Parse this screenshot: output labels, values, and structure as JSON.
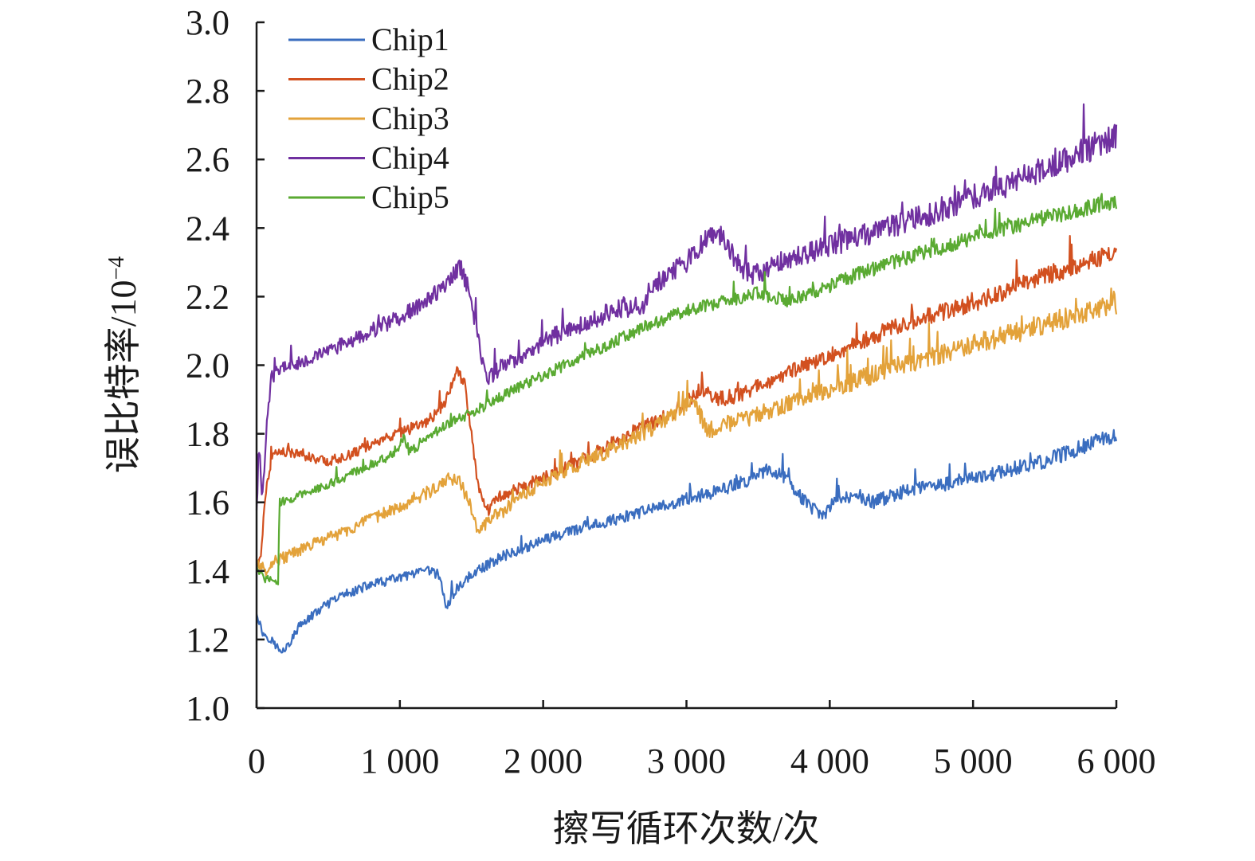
{
  "chart_data": {
    "type": "line",
    "title": "",
    "xlabel": "擦写循环次数/次",
    "ylabel": "误比特率/10",
    "ylabel_exponent": "−4",
    "xlim": [
      0,
      6000
    ],
    "ylim": [
      1.0,
      3.0
    ],
    "xticks": [
      0,
      1000,
      2000,
      3000,
      4000,
      5000,
      6000
    ],
    "xtick_labels": [
      "0",
      "1 000",
      "2 000",
      "3 000",
      "4 000",
      "5 000",
      "6 000"
    ],
    "yticks": [
      1.0,
      1.2,
      1.4,
      1.6,
      1.8,
      2.0,
      2.2,
      2.4,
      2.6,
      2.8,
      3.0
    ],
    "ytick_labels": [
      "1.0",
      "1.2",
      "1.4",
      "1.6",
      "1.8",
      "2.0",
      "2.2",
      "2.4",
      "2.6",
      "2.8",
      "3.0"
    ],
    "grid": false,
    "legend_position": "top-left",
    "series": [
      {
        "name": "Chip1",
        "color": "#3a6dbf",
        "noise": 0.012,
        "points": [
          [
            0,
            1.28
          ],
          [
            40,
            1.22
          ],
          [
            100,
            1.2
          ],
          [
            160,
            1.17
          ],
          [
            220,
            1.18
          ],
          [
            300,
            1.24
          ],
          [
            450,
            1.29
          ],
          [
            600,
            1.33
          ],
          [
            800,
            1.36
          ],
          [
            1000,
            1.38
          ],
          [
            1200,
            1.4
          ],
          [
            1270,
            1.39
          ],
          [
            1330,
            1.29
          ],
          [
            1380,
            1.34
          ],
          [
            1500,
            1.39
          ],
          [
            1700,
            1.44
          ],
          [
            2000,
            1.49
          ],
          [
            2300,
            1.53
          ],
          [
            2600,
            1.56
          ],
          [
            3000,
            1.61
          ],
          [
            3200,
            1.63
          ],
          [
            3400,
            1.66
          ],
          [
            3550,
            1.69
          ],
          [
            3700,
            1.67
          ],
          [
            3850,
            1.59
          ],
          [
            3950,
            1.56
          ],
          [
            4050,
            1.61
          ],
          [
            4200,
            1.62
          ],
          [
            4300,
            1.6
          ],
          [
            4500,
            1.63
          ],
          [
            5000,
            1.67
          ],
          [
            5500,
            1.72
          ],
          [
            6000,
            1.8
          ]
        ]
      },
      {
        "name": "Chip2",
        "color": "#d2501f",
        "noise": 0.014,
        "points": [
          [
            0,
            1.4
          ],
          [
            30,
            1.45
          ],
          [
            60,
            1.62
          ],
          [
            100,
            1.72
          ],
          [
            150,
            1.75
          ],
          [
            300,
            1.74
          ],
          [
            500,
            1.72
          ],
          [
            600,
            1.73
          ],
          [
            800,
            1.77
          ],
          [
            1000,
            1.8
          ],
          [
            1200,
            1.84
          ],
          [
            1300,
            1.88
          ],
          [
            1400,
            1.98
          ],
          [
            1450,
            1.95
          ],
          [
            1500,
            1.8
          ],
          [
            1550,
            1.64
          ],
          [
            1620,
            1.58
          ],
          [
            1700,
            1.62
          ],
          [
            2000,
            1.67
          ],
          [
            2300,
            1.73
          ],
          [
            2600,
            1.8
          ],
          [
            2900,
            1.86
          ],
          [
            3100,
            1.93
          ],
          [
            3200,
            1.9
          ],
          [
            3350,
            1.91
          ],
          [
            3600,
            1.96
          ],
          [
            4000,
            2.03
          ],
          [
            4500,
            2.12
          ],
          [
            5000,
            2.18
          ],
          [
            5500,
            2.26
          ],
          [
            6000,
            2.33
          ]
        ]
      },
      {
        "name": "Chip3",
        "color": "#e3a23a",
        "noise": 0.016,
        "points": [
          [
            0,
            1.43
          ],
          [
            60,
            1.4
          ],
          [
            120,
            1.43
          ],
          [
            200,
            1.44
          ],
          [
            400,
            1.48
          ],
          [
            700,
            1.53
          ],
          [
            1000,
            1.59
          ],
          [
            1200,
            1.63
          ],
          [
            1350,
            1.67
          ],
          [
            1420,
            1.66
          ],
          [
            1500,
            1.58
          ],
          [
            1540,
            1.51
          ],
          [
            1600,
            1.54
          ],
          [
            1800,
            1.6
          ],
          [
            2000,
            1.66
          ],
          [
            2300,
            1.72
          ],
          [
            2600,
            1.78
          ],
          [
            2900,
            1.85
          ],
          [
            3050,
            1.9
          ],
          [
            3100,
            1.85
          ],
          [
            3150,
            1.81
          ],
          [
            3300,
            1.83
          ],
          [
            3600,
            1.87
          ],
          [
            4000,
            1.93
          ],
          [
            4500,
            2.0
          ],
          [
            5000,
            2.06
          ],
          [
            5500,
            2.12
          ],
          [
            6000,
            2.18
          ]
        ]
      },
      {
        "name": "Chip4",
        "color": "#7030a0",
        "noise": 0.02,
        "points": [
          [
            0,
            1.58
          ],
          [
            20,
            1.76
          ],
          [
            40,
            1.6
          ],
          [
            70,
            1.82
          ],
          [
            100,
            1.96
          ],
          [
            150,
            1.99
          ],
          [
            300,
            2.01
          ],
          [
            500,
            2.04
          ],
          [
            800,
            2.1
          ],
          [
            1000,
            2.14
          ],
          [
            1200,
            2.19
          ],
          [
            1350,
            2.25
          ],
          [
            1420,
            2.29
          ],
          [
            1480,
            2.22
          ],
          [
            1550,
            2.08
          ],
          [
            1600,
            1.96
          ],
          [
            1700,
            1.99
          ],
          [
            2000,
            2.07
          ],
          [
            2200,
            2.11
          ],
          [
            2500,
            2.16
          ],
          [
            2700,
            2.18
          ],
          [
            2750,
            2.23
          ],
          [
            3000,
            2.3
          ],
          [
            3150,
            2.37
          ],
          [
            3250,
            2.38
          ],
          [
            3350,
            2.3
          ],
          [
            3450,
            2.26
          ],
          [
            3700,
            2.31
          ],
          [
            4000,
            2.35
          ],
          [
            4500,
            2.41
          ],
          [
            5000,
            2.49
          ],
          [
            5500,
            2.57
          ],
          [
            6000,
            2.67
          ]
        ]
      },
      {
        "name": "Chip5",
        "color": "#5aaa32",
        "noise": 0.012,
        "points": [
          [
            0,
            1.42
          ],
          [
            40,
            1.38
          ],
          [
            110,
            1.37
          ],
          [
            150,
            1.37
          ],
          [
            160,
            1.6
          ],
          [
            300,
            1.62
          ],
          [
            600,
            1.67
          ],
          [
            900,
            1.73
          ],
          [
            1000,
            1.76
          ],
          [
            1030,
            1.8
          ],
          [
            1060,
            1.75
          ],
          [
            1150,
            1.77
          ],
          [
            1300,
            1.82
          ],
          [
            1500,
            1.86
          ],
          [
            1800,
            1.93
          ],
          [
            2100,
            1.99
          ],
          [
            2400,
            2.05
          ],
          [
            2700,
            2.11
          ],
          [
            3000,
            2.16
          ],
          [
            3300,
            2.19
          ],
          [
            3500,
            2.21
          ],
          [
            3700,
            2.19
          ],
          [
            3900,
            2.21
          ],
          [
            4100,
            2.25
          ],
          [
            4500,
            2.31
          ],
          [
            5000,
            2.37
          ],
          [
            5500,
            2.43
          ],
          [
            6000,
            2.48
          ]
        ]
      }
    ]
  }
}
